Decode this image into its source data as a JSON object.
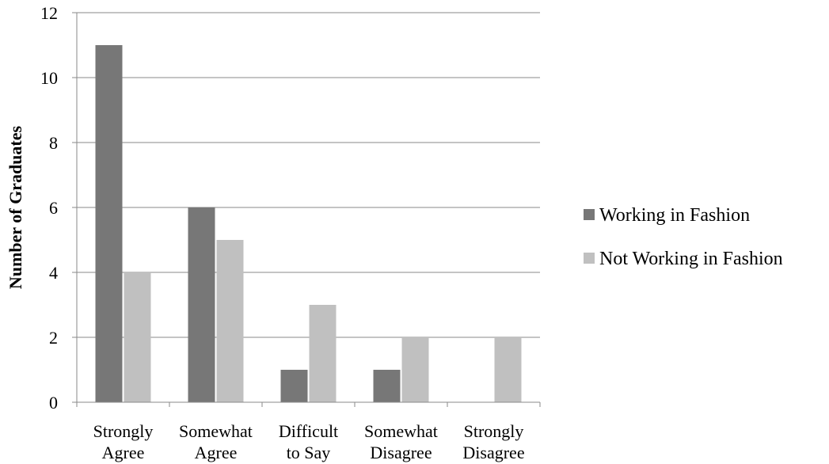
{
  "chart_data": {
    "type": "bar",
    "title": "",
    "xlabel": "",
    "ylabel": "Number of Graduates",
    "ylim": [
      0,
      12
    ],
    "yticks": [
      0,
      2,
      4,
      6,
      8,
      10,
      12
    ],
    "grid": "horizontal",
    "legend_position": "right",
    "categories": [
      [
        "Strongly",
        "Agree"
      ],
      [
        "Somewhat",
        "Agree"
      ],
      [
        "Difficult",
        "to Say"
      ],
      [
        "Somewhat",
        "Disagree"
      ],
      [
        "Strongly",
        "Disagree"
      ]
    ],
    "series": [
      {
        "name": "Working in Fashion",
        "color": "#777777",
        "values": [
          11,
          6,
          1,
          1,
          0
        ]
      },
      {
        "name": "Not Working in Fashion",
        "color": "#c0c0c0",
        "values": [
          4,
          5,
          3,
          2,
          2
        ]
      }
    ]
  }
}
